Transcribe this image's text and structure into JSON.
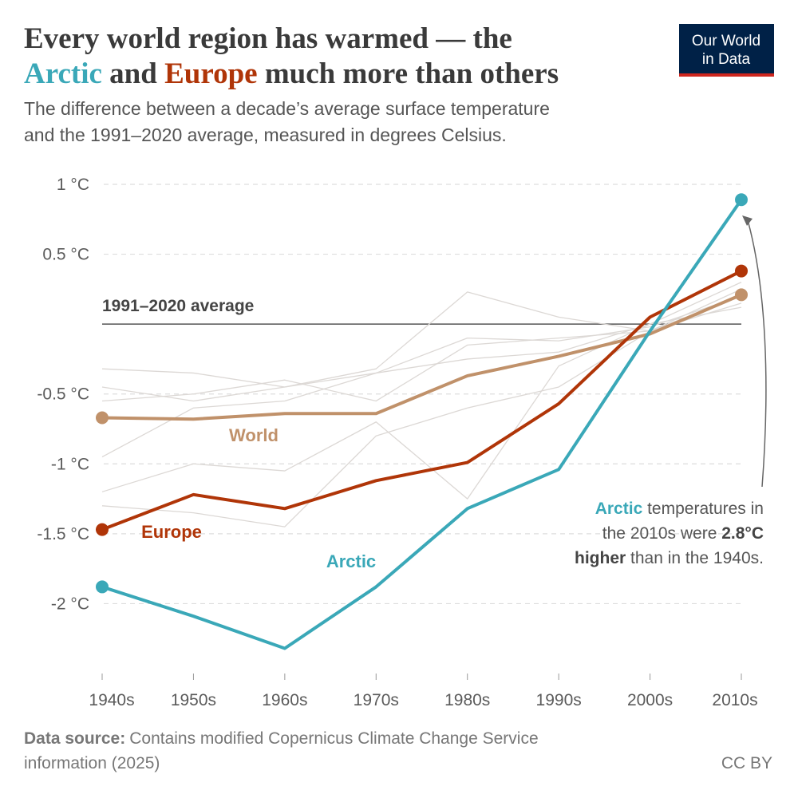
{
  "chart_data": {
    "type": "line",
    "title_parts": [
      "Every world region has warmed — the",
      "Arctic",
      " and ",
      "Europe",
      " much more than others"
    ],
    "subtitle_lines": [
      "The difference between a decade’s average surface temperature",
      "and the 1991–2020 average, measured in degrees Celsius."
    ],
    "logo": [
      "Our World",
      "in Data"
    ],
    "categories": [
      "1940s",
      "1950s",
      "1960s",
      "1970s",
      "1980s",
      "1990s",
      "2000s",
      "2010s"
    ],
    "ylim": [
      -2.5,
      1
    ],
    "yticks": [
      {
        "value": 1,
        "label": "1 °C"
      },
      {
        "value": 0.5,
        "label": "0.5 °C"
      },
      {
        "value": -0.5,
        "label": "-0.5 °C"
      },
      {
        "value": -1,
        "label": "-1 °C"
      },
      {
        "value": -1.5,
        "label": "-1.5 °C"
      },
      {
        "value": -2,
        "label": "-2 °C"
      }
    ],
    "grid": true,
    "reference_line": {
      "value": 0,
      "label": "1991–2020 average"
    },
    "background_color": "#dcd8d5",
    "background_series": [
      {
        "values": [
          -0.32,
          -0.35,
          -0.45,
          -0.32,
          0.23,
          0.05,
          -0.05,
          0.15
        ]
      },
      {
        "values": [
          -1.2,
          -1.0,
          -1.05,
          -0.7,
          -1.25,
          -0.3,
          0.0,
          0.3
        ]
      },
      {
        "values": [
          -0.55,
          -0.5,
          -0.4,
          -0.55,
          -0.15,
          -0.1,
          -0.05,
          0.2
        ]
      },
      {
        "values": [
          -0.95,
          -0.6,
          -0.55,
          -0.35,
          -0.25,
          -0.2,
          0.0,
          0.12
        ]
      },
      {
        "values": [
          -0.45,
          -0.55,
          -0.45,
          -0.35,
          -0.1,
          -0.12,
          -0.02,
          0.2
        ]
      },
      {
        "values": [
          -1.3,
          -1.35,
          -1.45,
          -0.8,
          -0.6,
          -0.45,
          -0.05,
          0.25
        ]
      }
    ],
    "series": [
      {
        "name": "World",
        "color": "#c0916a",
        "values": [
          -0.67,
          -0.68,
          -0.64,
          -0.64,
          -0.37,
          -0.23,
          -0.07,
          0.21
        ]
      },
      {
        "name": "Europe",
        "color": "#b03508",
        "values": [
          -1.47,
          -1.22,
          -1.32,
          -1.12,
          -0.99,
          -0.57,
          0.05,
          0.38
        ]
      },
      {
        "name": "Arctic",
        "color": "#3aa8b8",
        "values": [
          -1.88,
          -2.09,
          -2.32,
          -1.88,
          -1.32,
          -1.04,
          -0.05,
          0.89
        ]
      }
    ],
    "annotation_lines": [
      [
        "Arctic",
        " temperatures in"
      ],
      [
        "the 2010s were ",
        "2.8°C"
      ],
      [
        "higher",
        " than in the 1940s."
      ]
    ],
    "source_label": "Data source:",
    "source_lines": [
      "Contains modified Copernicus Climate Change Service",
      "information (2025)"
    ],
    "license": "CC BY"
  }
}
